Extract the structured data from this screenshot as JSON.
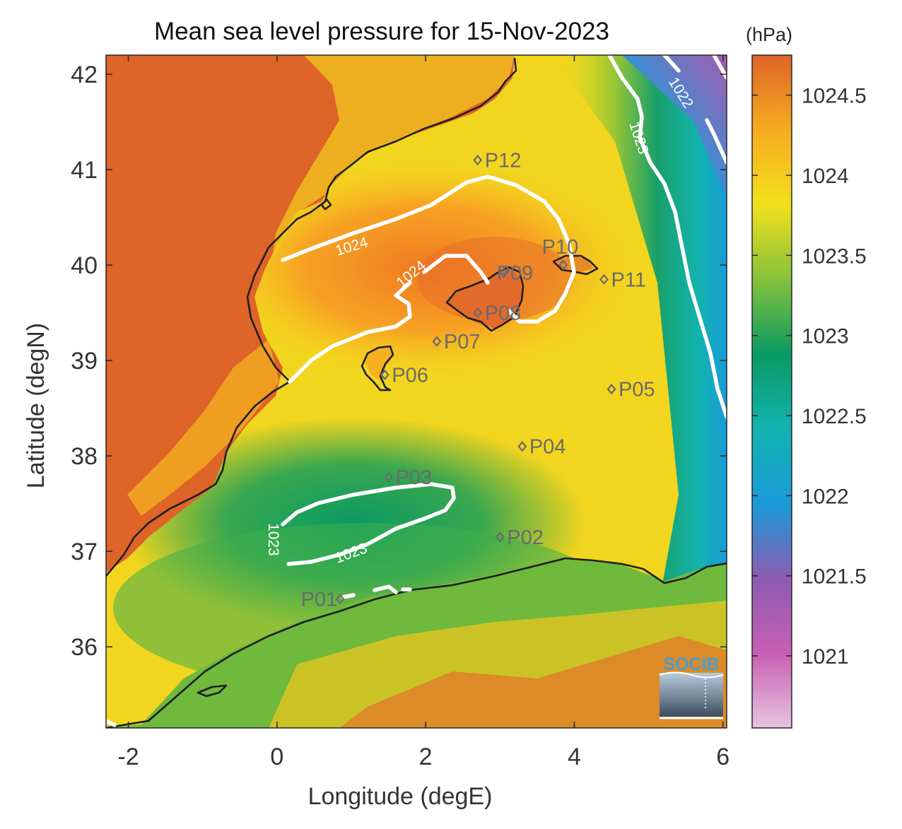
{
  "title": "Mean sea level pressure for 15-Nov-2023",
  "colorbar_unit": "(hPa)",
  "axes": {
    "xlabel": "Longitude (degE)",
    "ylabel": "Latitude (degN)",
    "xlim": [
      -2.3,
      6.05
    ],
    "ylim": [
      35.15,
      42.2
    ],
    "xticks": [
      -2,
      0,
      2,
      4,
      6
    ],
    "yticks": [
      36,
      37,
      38,
      39,
      40,
      41,
      42
    ]
  },
  "colorbar": {
    "range": [
      1020.55,
      1024.75
    ],
    "ticks": [
      1021,
      1021.5,
      1022,
      1022.5,
      1023,
      1023.5,
      1024,
      1024.5
    ],
    "colors": [
      "#e6c4de",
      "#c75fb4",
      "#8d5bb0",
      "#1a9ad9",
      "#12b3b0",
      "#0a9a62",
      "#85c23c",
      "#f2e01c",
      "#f7ab20",
      "#de6428"
    ]
  },
  "contour_labels": [
    "1024",
    "1024",
    "1023",
    "1023",
    "1022",
    "1023",
    "1023"
  ],
  "stations": [
    {
      "name": "P01",
      "lon": 0.85,
      "lat": 36.5
    },
    {
      "name": "P02",
      "lon": 3.0,
      "lat": 37.15
    },
    {
      "name": "P03",
      "lon": 1.5,
      "lat": 37.78
    },
    {
      "name": "P04",
      "lon": 3.3,
      "lat": 38.1
    },
    {
      "name": "P05",
      "lon": 4.5,
      "lat": 38.7
    },
    {
      "name": "P06",
      "lon": 1.45,
      "lat": 38.85
    },
    {
      "name": "P07",
      "lon": 2.15,
      "lat": 39.2
    },
    {
      "name": "P08",
      "lon": 2.7,
      "lat": 39.5
    },
    {
      "name": "P09",
      "lon": 3.05,
      "lat": 39.92
    },
    {
      "name": "P10",
      "lon": 3.85,
      "lat": 40.0
    },
    {
      "name": "P11",
      "lon": 4.4,
      "lat": 39.85
    },
    {
      "name": "P12",
      "lon": 2.7,
      "lat": 41.1
    }
  ],
  "logo": {
    "text": "SOCIB"
  }
}
